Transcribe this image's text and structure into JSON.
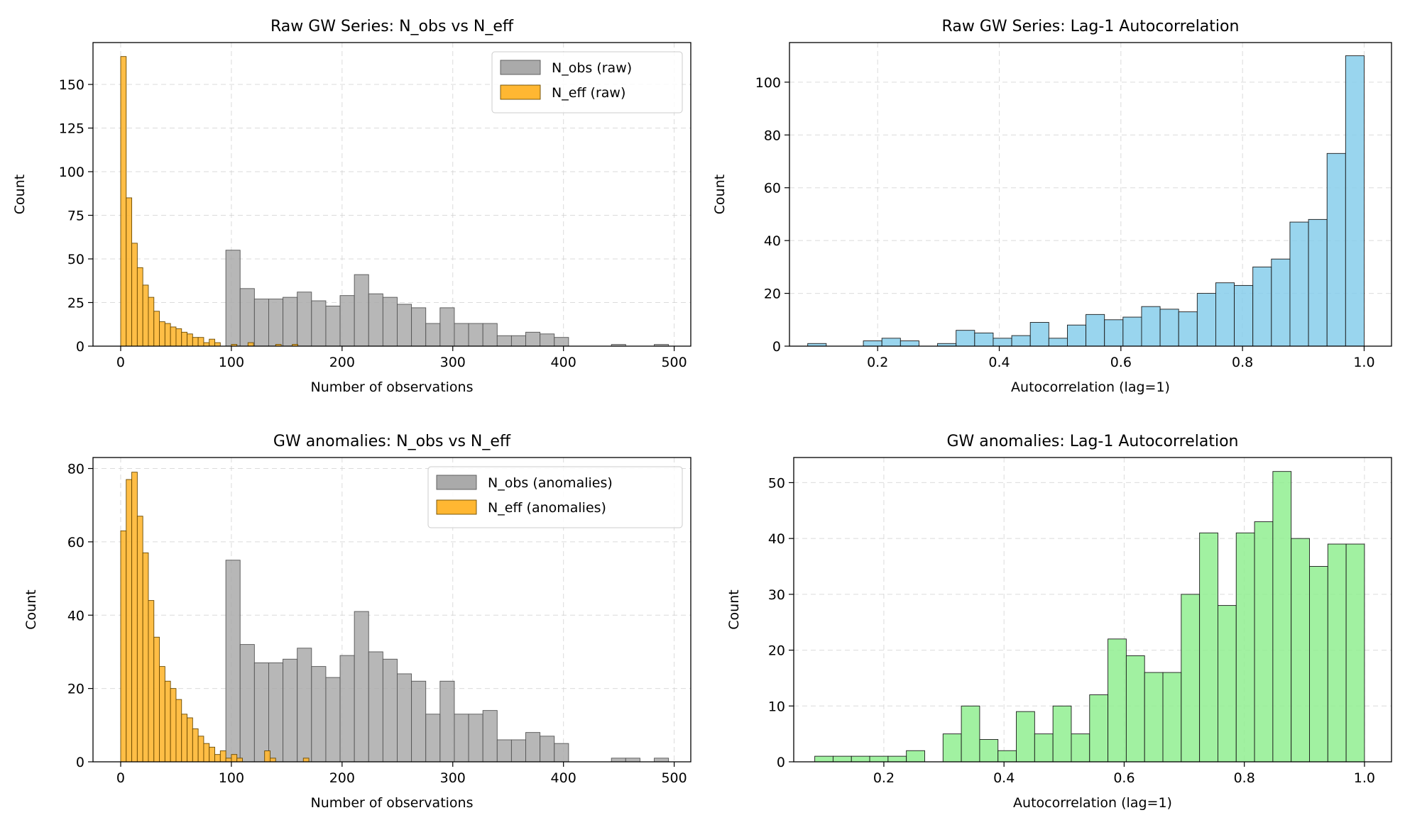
{
  "chart_data": [
    {
      "type": "bar",
      "title": "Raw GW Series: N_obs vs N_eff",
      "xlabel": "Number of observations",
      "ylabel": "Count",
      "xlim": [
        -25,
        515
      ],
      "ylim": [
        0,
        174
      ],
      "xticks": [
        0,
        100,
        200,
        300,
        400,
        500
      ],
      "yticks": [
        0,
        25,
        50,
        75,
        100,
        125,
        150
      ],
      "grid": true,
      "legend_position": "top-right",
      "series": [
        {
          "name": "N_obs (raw)",
          "color": "#aaaaaa",
          "bin_start": 95,
          "bin_width": 12.9,
          "values": [
            55,
            33,
            27,
            27,
            28,
            31,
            26,
            23,
            29,
            41,
            30,
            28,
            24,
            22,
            13,
            22,
            13,
            13,
            13,
            6,
            6,
            8,
            7,
            5,
            0,
            0,
            0,
            1,
            0,
            0,
            1
          ]
        },
        {
          "name": "N_eff (raw)",
          "color": "#ffb732",
          "bin_start": 0,
          "bin_width": 5,
          "values": [
            166,
            85,
            59,
            45,
            35,
            28,
            20,
            14,
            13,
            11,
            10,
            8,
            7,
            5,
            5,
            2,
            4,
            2,
            0,
            0,
            1,
            0,
            0,
            2,
            0,
            0,
            0,
            0,
            1,
            0,
            0,
            1
          ]
        }
      ]
    },
    {
      "type": "bar",
      "title": "Raw GW Series: Lag-1 Autocorrelation",
      "xlabel": "Autocorrelation (lag=1)",
      "ylabel": "Count",
      "xlim": [
        0.055,
        1.045
      ],
      "ylim": [
        0,
        115
      ],
      "xticks": [
        "0.2",
        "0.4",
        "0.6",
        "0.8",
        "1.0"
      ],
      "yticks": [
        0,
        20,
        40,
        60,
        80,
        100
      ],
      "grid": true,
      "series": [
        {
          "name": "",
          "color": "#87ceeb",
          "bin_start": 0.085,
          "bin_width": 0.0305,
          "values": [
            1,
            0,
            0,
            2,
            3,
            2,
            0,
            1,
            6,
            5,
            3,
            4,
            9,
            3,
            8,
            12,
            10,
            11,
            15,
            14,
            13,
            20,
            24,
            23,
            30,
            33,
            47,
            48,
            73,
            110
          ]
        }
      ]
    },
    {
      "type": "bar",
      "title": "GW anomalies: N_obs vs N_eff",
      "xlabel": "Number of observations",
      "ylabel": "Count",
      "xlim": [
        -25,
        515
      ],
      "ylim": [
        0,
        83
      ],
      "xticks": [
        0,
        100,
        200,
        300,
        400,
        500
      ],
      "yticks": [
        0,
        20,
        40,
        60,
        80
      ],
      "grid": true,
      "legend_position": "top-right",
      "series": [
        {
          "name": "N_obs (anomalies)",
          "color": "#aaaaaa",
          "bin_start": 95,
          "bin_width": 12.9,
          "values": [
            55,
            32,
            27,
            27,
            28,
            31,
            26,
            23,
            29,
            41,
            30,
            28,
            24,
            22,
            13,
            22,
            13,
            13,
            14,
            6,
            6,
            8,
            7,
            5,
            0,
            0,
            0,
            1,
            1,
            0,
            1
          ]
        },
        {
          "name": "N_eff (anomalies)",
          "color": "#ffb732",
          "bin_start": 0,
          "bin_width": 5,
          "values": [
            63,
            77,
            79,
            67,
            57,
            44,
            34,
            26,
            22,
            20,
            17,
            13,
            12,
            9,
            7,
            5,
            4,
            2,
            3,
            1,
            2,
            1,
            0,
            0,
            0,
            0,
            3,
            1,
            0,
            0,
            0,
            0,
            0,
            1
          ]
        }
      ]
    },
    {
      "type": "bar",
      "title": "GW anomalies: Lag-1 Autocorrelation",
      "xlabel": "Autocorrelation (lag=1)",
      "ylabel": "Count",
      "xlim": [
        0.05,
        1.045
      ],
      "ylim": [
        0,
        54.5
      ],
      "xticks": [
        "0.2",
        "0.4",
        "0.6",
        "0.8",
        "1.0"
      ],
      "yticks": [
        0,
        10,
        20,
        30,
        40,
        50
      ],
      "grid": true,
      "series": [
        {
          "name": "",
          "color": "#90ee90",
          "bin_start": 0.085,
          "bin_width": 0.0305,
          "values": [
            1,
            1,
            1,
            1,
            1,
            2,
            0,
            5,
            10,
            4,
            2,
            9,
            5,
            10,
            5,
            12,
            22,
            19,
            16,
            16,
            30,
            41,
            28,
            41,
            43,
            52,
            40,
            35,
            39,
            39
          ]
        }
      ]
    }
  ]
}
